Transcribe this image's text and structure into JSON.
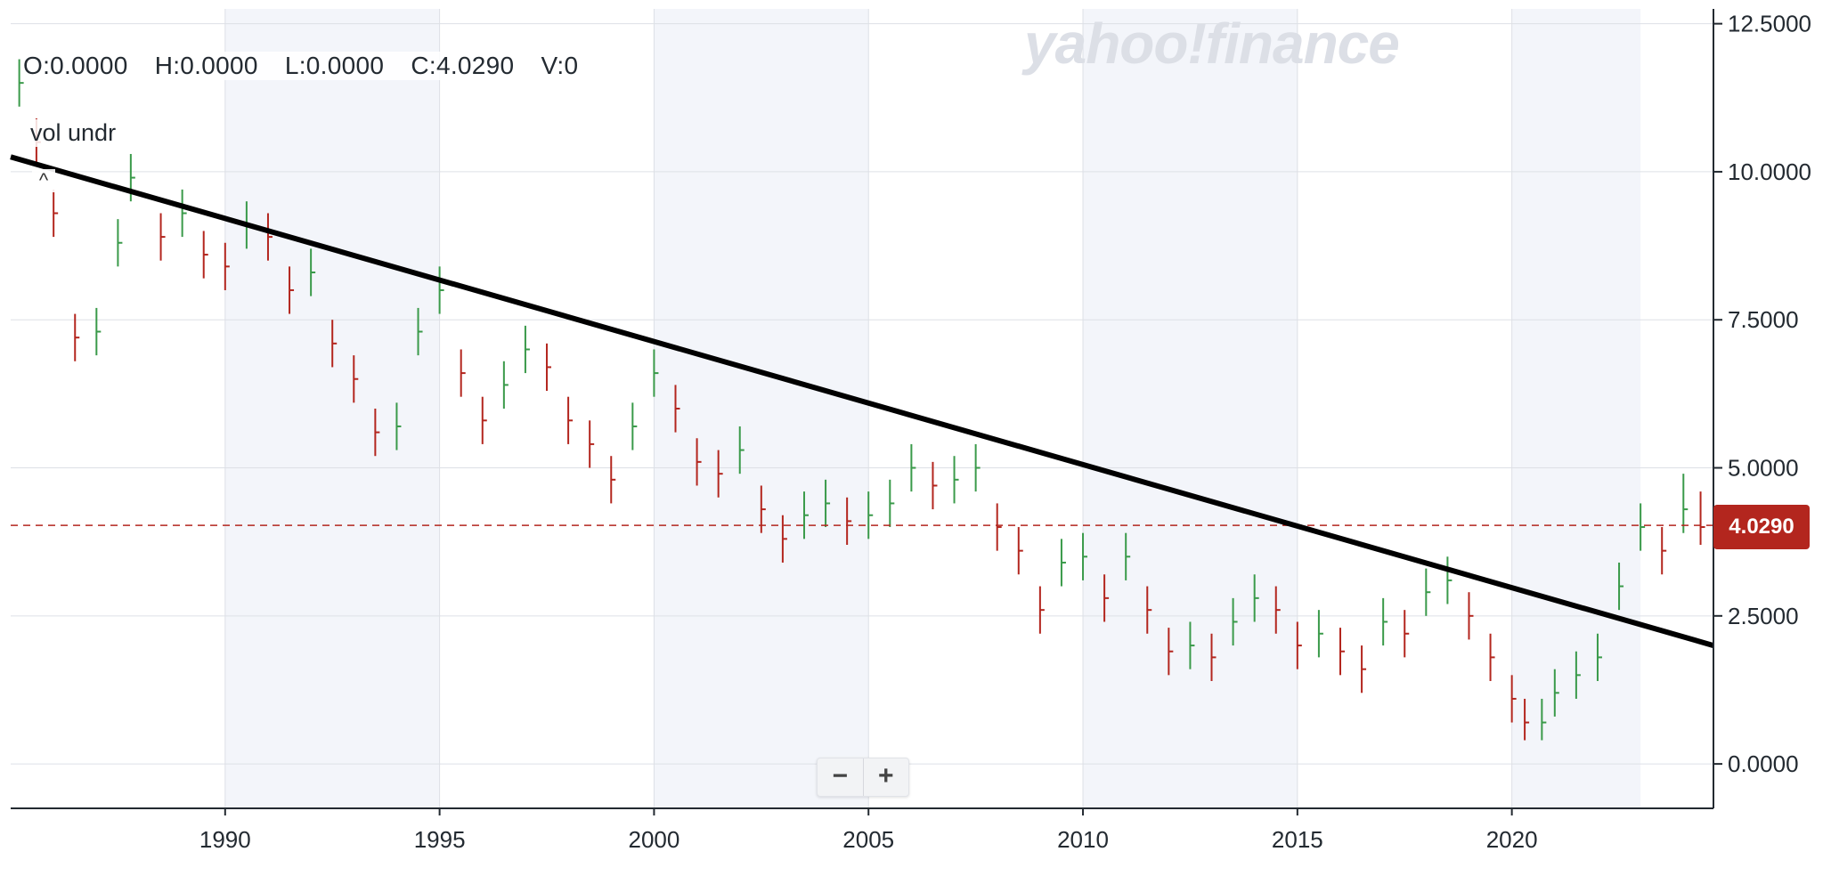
{
  "header": {
    "ohlc": {
      "open": "O:0.0000",
      "high": "H:0.0000",
      "low": "L:0.0000",
      "close": "C:4.0290",
      "volume": "V:0"
    },
    "study_label": "vol undr",
    "collapse_icon": "^",
    "watermark": "yahoo!finance"
  },
  "zoom": {
    "minus": "−",
    "plus": "+"
  },
  "price_tag": "4.0290",
  "colors": {
    "up": "#3a9a4a",
    "down": "#b3261e",
    "trendline": "#000000",
    "band": "#f3f5fa",
    "grid": "#dde0e6",
    "axis": "#232a31"
  },
  "chart_data": {
    "type": "ohlc",
    "title": "",
    "xlabel": "",
    "ylabel": "",
    "x_ticks": [
      "1990",
      "1995",
      "2000",
      "2005",
      "2010",
      "2015",
      "2020"
    ],
    "y_ticks": [
      "0.0000",
      "2.5000",
      "5.0000",
      "7.5000",
      "10.0000",
      "12.5000"
    ],
    "xlim": [
      1985.0,
      2024.7
    ],
    "ylim": [
      -0.75,
      12.75
    ],
    "grid": true,
    "last_close": 4.029,
    "trendline": {
      "x": [
        1985.0,
        2024.7
      ],
      "y": [
        10.25,
        2.0
      ]
    },
    "series": [
      {
        "x": [
          1985.2,
          1985.6,
          1986.0,
          1986.5,
          1987.0,
          1987.5,
          1987.8,
          1988.5,
          1989.0,
          1989.5,
          1990.0,
          1990.5,
          1991.0,
          1991.5,
          1992.0,
          1992.5,
          1993.0,
          1993.5,
          1994.0,
          1994.5,
          1995.0,
          1995.5,
          1996.0,
          1996.5,
          1997.0,
          1997.5,
          1998.0,
          1998.5,
          1999.0,
          1999.5,
          2000.0,
          2000.5,
          2001.0,
          2001.5,
          2002.0,
          2002.5,
          2003.0,
          2003.5,
          2004.0,
          2004.5,
          2005.0,
          2005.5,
          2006.0,
          2006.5,
          2007.0,
          2007.5,
          2008.0,
          2008.5,
          2009.0,
          2009.5,
          2010.0,
          2010.5,
          2011.0,
          2011.5,
          2012.0,
          2012.5,
          2013.0,
          2013.5,
          2014.0,
          2014.5,
          2015.0,
          2015.5,
          2016.0,
          2016.5,
          2017.0,
          2017.5,
          2018.0,
          2018.5,
          2019.0,
          2019.5,
          2020.0,
          2020.3,
          2020.7,
          2021.0,
          2021.5,
          2022.0,
          2022.5,
          2023.0,
          2023.5,
          2024.0,
          2024.4
        ],
        "close": [
          11.5,
          10.5,
          9.3,
          7.2,
          7.3,
          8.8,
          9.9,
          8.9,
          9.3,
          8.6,
          8.4,
          9.1,
          8.9,
          8.0,
          8.3,
          7.1,
          6.5,
          5.6,
          5.7,
          7.3,
          8.0,
          6.6,
          5.8,
          6.4,
          7.0,
          6.7,
          5.8,
          5.4,
          4.8,
          5.7,
          6.6,
          6.0,
          5.1,
          4.9,
          5.3,
          4.3,
          3.8,
          4.2,
          4.4,
          4.1,
          4.2,
          4.4,
          5.0,
          4.7,
          4.8,
          5.0,
          4.0,
          3.6,
          2.6,
          3.4,
          3.5,
          2.8,
          3.5,
          2.6,
          1.9,
          2.0,
          1.8,
          2.4,
          2.8,
          2.6,
          2.0,
          2.2,
          1.9,
          1.6,
          2.4,
          2.2,
          2.9,
          3.1,
          2.5,
          1.8,
          1.1,
          0.7,
          0.7,
          1.2,
          1.5,
          1.8,
          3.0,
          4.0,
          3.6,
          4.3,
          4.0
        ],
        "high": [
          11.9,
          10.9,
          9.7,
          7.6,
          7.7,
          9.2,
          10.3,
          9.3,
          9.7,
          9.0,
          8.8,
          9.5,
          9.3,
          8.4,
          8.7,
          7.5,
          6.9,
          6.0,
          6.1,
          7.7,
          8.4,
          7.0,
          6.2,
          6.8,
          7.4,
          7.1,
          6.2,
          5.8,
          5.2,
          6.1,
          7.0,
          6.4,
          5.5,
          5.3,
          5.7,
          4.7,
          4.2,
          4.6,
          4.8,
          4.5,
          4.6,
          4.8,
          5.4,
          5.1,
          5.2,
          5.4,
          4.4,
          4.0,
          3.0,
          3.8,
          3.9,
          3.2,
          3.9,
          3.0,
          2.3,
          2.4,
          2.2,
          2.8,
          3.2,
          3.0,
          2.4,
          2.6,
          2.3,
          2.0,
          2.8,
          2.6,
          3.3,
          3.5,
          2.9,
          2.2,
          1.5,
          1.1,
          1.1,
          1.6,
          1.9,
          2.2,
          3.4,
          4.4,
          4.0,
          4.9,
          4.6
        ],
        "low": [
          11.1,
          10.1,
          8.9,
          6.8,
          6.9,
          8.4,
          9.5,
          8.5,
          8.9,
          8.2,
          8.0,
          8.7,
          8.5,
          7.6,
          7.9,
          6.7,
          6.1,
          5.2,
          5.3,
          6.9,
          7.6,
          6.2,
          5.4,
          6.0,
          6.6,
          6.3,
          5.4,
          5.0,
          4.4,
          5.3,
          6.2,
          5.6,
          4.7,
          4.5,
          4.9,
          3.9,
          3.4,
          3.8,
          4.0,
          3.7,
          3.8,
          4.0,
          4.6,
          4.3,
          4.4,
          4.6,
          3.6,
          3.2,
          2.2,
          3.0,
          3.1,
          2.4,
          3.1,
          2.2,
          1.5,
          1.6,
          1.4,
          2.0,
          2.4,
          2.2,
          1.6,
          1.8,
          1.5,
          1.2,
          2.0,
          1.8,
          2.5,
          2.7,
          2.1,
          1.4,
          0.7,
          0.4,
          0.4,
          0.8,
          1.1,
          1.4,
          2.6,
          3.6,
          3.2,
          3.9,
          3.7
        ]
      }
    ]
  }
}
